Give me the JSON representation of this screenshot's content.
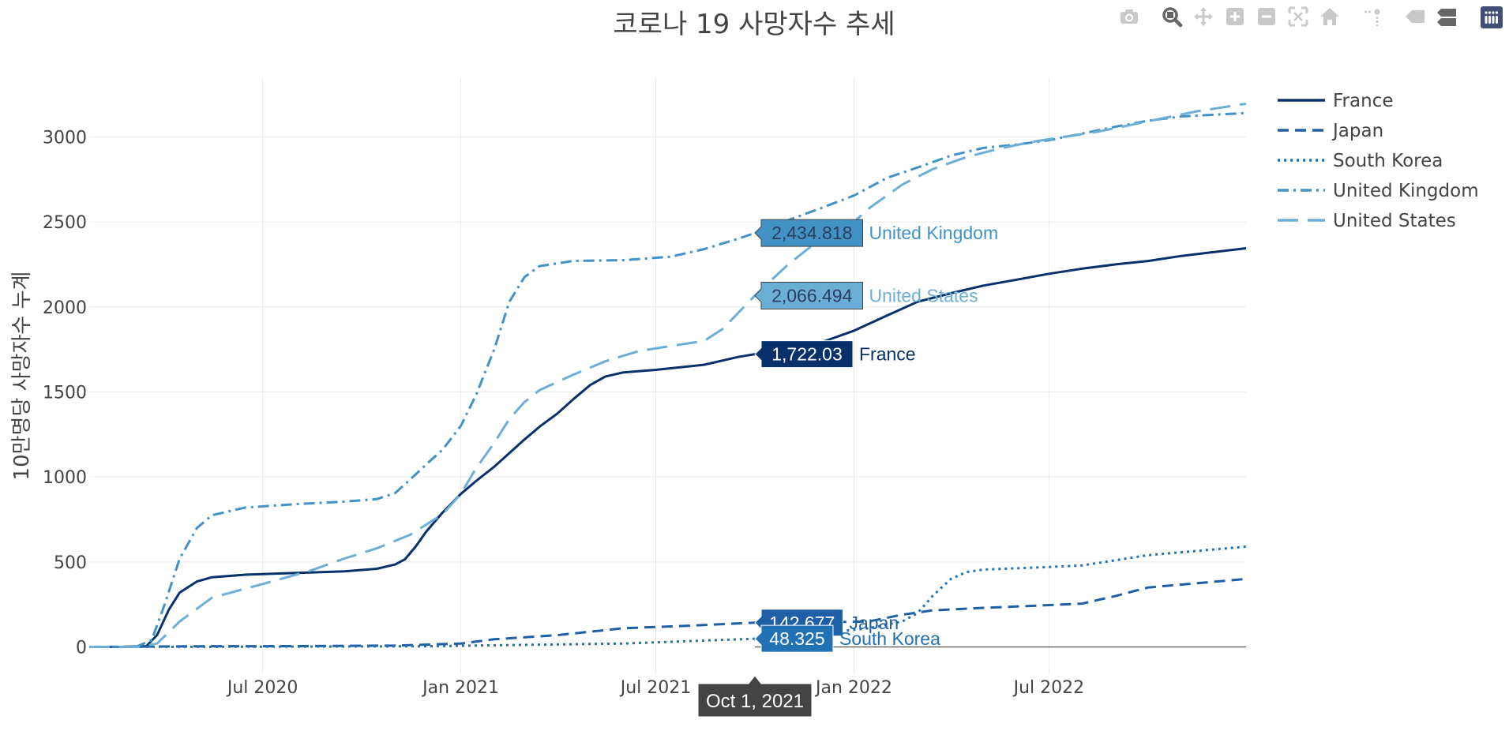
{
  "toolbar": {
    "buttons": [
      {
        "name": "camera-icon",
        "label": "Download plot as a png"
      },
      {
        "name": "zoom-icon",
        "label": "Zoom"
      },
      {
        "name": "pan-icon",
        "label": "Pan"
      },
      {
        "name": "zoom-in-icon",
        "label": "Zoom in"
      },
      {
        "name": "zoom-out-icon",
        "label": "Zoom out"
      },
      {
        "name": "autoscale-icon",
        "label": "Autoscale"
      },
      {
        "name": "home-icon",
        "label": "Reset axes"
      },
      {
        "name": "spike-icon",
        "label": "Toggle Spike Lines"
      },
      {
        "name": "hover-closest-icon",
        "label": "Show closest data on hover"
      },
      {
        "name": "hover-compare-icon",
        "label": "Compare data on hover"
      },
      {
        "name": "plotly-logo-icon",
        "label": "Produced with Plotly"
      }
    ],
    "active": "zoom-icon"
  },
  "chart_data": {
    "type": "line",
    "title": "코로나 19 사망자수 추세",
    "xlabel": "",
    "ylabel": "10만명당 사망자수 누계",
    "x_range": [
      "2020-01-22",
      "2022-12-31"
    ],
    "ylim": [
      -160,
      3350
    ],
    "x_ticks": [
      {
        "date": "2020-07-01",
        "label": "Jul 2020"
      },
      {
        "date": "2021-01-01",
        "label": "Jan 2021"
      },
      {
        "date": "2021-07-01",
        "label": "Jul 2021"
      },
      {
        "date": "2022-01-01",
        "label": "Jan 2022"
      },
      {
        "date": "2022-07-01",
        "label": "Jul 2022"
      }
    ],
    "y_ticks": [
      0,
      500,
      1000,
      1500,
      2000,
      2500,
      3000
    ],
    "grid": true,
    "legend_position": "top-right",
    "hover": {
      "date": "2021-10-01",
      "date_label": "Oct 1, 2021",
      "labels": [
        {
          "series": "United Kingdom",
          "value": 2434.818,
          "text": "2,434.818"
        },
        {
          "series": "United States",
          "value": 2066.494,
          "text": "2,066.494"
        },
        {
          "series": "France",
          "value": 1722.03,
          "text": "1,722.03"
        },
        {
          "series": "Japan",
          "value": 142.677,
          "text": "142.677"
        },
        {
          "series": "South Korea",
          "value": 48.325,
          "text": "48.325"
        }
      ]
    },
    "series": [
      {
        "name": "France",
        "color": "#08306b",
        "dash": "solid",
        "points": [
          [
            "2020-01-22",
            0
          ],
          [
            "2020-02-20",
            0
          ],
          [
            "2020-03-15",
            5
          ],
          [
            "2020-03-25",
            70
          ],
          [
            "2020-04-05",
            220
          ],
          [
            "2020-04-15",
            320
          ],
          [
            "2020-05-01",
            385
          ],
          [
            "2020-05-15",
            410
          ],
          [
            "2020-06-15",
            425
          ],
          [
            "2020-08-01",
            435
          ],
          [
            "2020-09-15",
            445
          ],
          [
            "2020-10-15",
            460
          ],
          [
            "2020-11-01",
            485
          ],
          [
            "2020-11-10",
            515
          ],
          [
            "2020-11-20",
            590
          ],
          [
            "2020-11-30",
            680
          ],
          [
            "2020-12-15",
            790
          ],
          [
            "2021-01-01",
            900
          ],
          [
            "2021-01-15",
            975
          ],
          [
            "2021-02-01",
            1060
          ],
          [
            "2021-02-15",
            1140
          ],
          [
            "2021-03-01",
            1220
          ],
          [
            "2021-03-15",
            1295
          ],
          [
            "2021-04-01",
            1375
          ],
          [
            "2021-04-15",
            1455
          ],
          [
            "2021-05-01",
            1540
          ],
          [
            "2021-05-15",
            1590
          ],
          [
            "2021-06-01",
            1615
          ],
          [
            "2021-07-01",
            1630
          ],
          [
            "2021-08-15",
            1660
          ],
          [
            "2021-09-15",
            1705
          ],
          [
            "2021-10-01",
            1722
          ],
          [
            "2021-11-01",
            1745
          ],
          [
            "2021-12-01",
            1790
          ],
          [
            "2022-01-01",
            1860
          ],
          [
            "2022-02-01",
            1950
          ],
          [
            "2022-03-01",
            2030
          ],
          [
            "2022-04-01",
            2080
          ],
          [
            "2022-05-01",
            2125
          ],
          [
            "2022-06-01",
            2160
          ],
          [
            "2022-07-01",
            2195
          ],
          [
            "2022-08-01",
            2225
          ],
          [
            "2022-09-01",
            2250
          ],
          [
            "2022-10-01",
            2270
          ],
          [
            "2022-11-01",
            2300
          ],
          [
            "2022-12-31",
            2345
          ]
        ]
      },
      {
        "name": "Japan",
        "color": "#1f5fa8",
        "dash": "dash",
        "points": [
          [
            "2020-01-22",
            0
          ],
          [
            "2020-05-01",
            4
          ],
          [
            "2020-08-01",
            5
          ],
          [
            "2020-11-01",
            8
          ],
          [
            "2021-01-01",
            20
          ],
          [
            "2021-02-01",
            45
          ],
          [
            "2021-04-01",
            70
          ],
          [
            "2021-06-01",
            110
          ],
          [
            "2021-08-01",
            125
          ],
          [
            "2021-10-01",
            142.7
          ],
          [
            "2021-12-01",
            145
          ],
          [
            "2022-01-15",
            150
          ],
          [
            "2022-02-15",
            190
          ],
          [
            "2022-03-15",
            215
          ],
          [
            "2022-05-01",
            230
          ],
          [
            "2022-06-01",
            238
          ],
          [
            "2022-08-01",
            255
          ],
          [
            "2022-09-01",
            300
          ],
          [
            "2022-10-01",
            350
          ],
          [
            "2022-12-31",
            400
          ]
        ]
      },
      {
        "name": "South Korea",
        "color": "#2171b5",
        "dash": "dot",
        "points": [
          [
            "2020-01-22",
            0
          ],
          [
            "2020-06-01",
            1
          ],
          [
            "2020-12-01",
            4
          ],
          [
            "2021-01-01",
            7
          ],
          [
            "2021-06-01",
            20
          ],
          [
            "2021-10-01",
            48.3
          ],
          [
            "2021-12-01",
            80
          ],
          [
            "2022-01-15",
            110
          ],
          [
            "2022-02-15",
            150
          ],
          [
            "2022-03-01",
            200
          ],
          [
            "2022-03-15",
            300
          ],
          [
            "2022-04-01",
            400
          ],
          [
            "2022-04-15",
            440
          ],
          [
            "2022-05-01",
            455
          ],
          [
            "2022-07-01",
            470
          ],
          [
            "2022-08-01",
            480
          ],
          [
            "2022-09-01",
            510
          ],
          [
            "2022-10-01",
            540
          ],
          [
            "2022-12-31",
            590
          ]
        ]
      },
      {
        "name": "United Kingdom",
        "color": "#4292c6",
        "dash": "dashdot",
        "points": [
          [
            "2020-01-22",
            0
          ],
          [
            "2020-03-05",
            0
          ],
          [
            "2020-03-20",
            40
          ],
          [
            "2020-04-01",
            250
          ],
          [
            "2020-04-15",
            520
          ],
          [
            "2020-05-01",
            700
          ],
          [
            "2020-05-15",
            775
          ],
          [
            "2020-06-15",
            820
          ],
          [
            "2020-08-01",
            840
          ],
          [
            "2020-09-15",
            855
          ],
          [
            "2020-10-15",
            870
          ],
          [
            "2020-11-01",
            905
          ],
          [
            "2020-11-15",
            985
          ],
          [
            "2020-12-01",
            1080
          ],
          [
            "2020-12-15",
            1160
          ],
          [
            "2021-01-01",
            1300
          ],
          [
            "2021-01-15",
            1480
          ],
          [
            "2021-02-01",
            1750
          ],
          [
            "2021-02-15",
            2030
          ],
          [
            "2021-03-01",
            2175
          ],
          [
            "2021-03-15",
            2240
          ],
          [
            "2021-04-15",
            2270
          ],
          [
            "2021-06-01",
            2275
          ],
          [
            "2021-07-15",
            2295
          ],
          [
            "2021-08-15",
            2340
          ],
          [
            "2021-09-15",
            2400
          ],
          [
            "2021-10-01",
            2434.8
          ],
          [
            "2021-11-01",
            2510
          ],
          [
            "2021-12-01",
            2580
          ],
          [
            "2022-01-01",
            2655
          ],
          [
            "2022-02-01",
            2760
          ],
          [
            "2022-03-01",
            2820
          ],
          [
            "2022-04-01",
            2890
          ],
          [
            "2022-05-01",
            2935
          ],
          [
            "2022-06-01",
            2955
          ],
          [
            "2022-07-01",
            2980
          ],
          [
            "2022-08-01",
            3020
          ],
          [
            "2022-09-01",
            3060
          ],
          [
            "2022-10-01",
            3095
          ],
          [
            "2022-11-01",
            3120
          ],
          [
            "2022-12-31",
            3140
          ]
        ]
      },
      {
        "name": "United States",
        "color": "#6baed6",
        "dash": "longdash",
        "points": [
          [
            "2020-01-22",
            0
          ],
          [
            "2020-03-10",
            0
          ],
          [
            "2020-03-25",
            20
          ],
          [
            "2020-04-15",
            150
          ],
          [
            "2020-05-15",
            290
          ],
          [
            "2020-07-01",
            370
          ],
          [
            "2020-08-15",
            450
          ],
          [
            "2020-09-15",
            520
          ],
          [
            "2020-10-15",
            580
          ],
          [
            "2020-11-15",
            660
          ],
          [
            "2020-12-15",
            780
          ],
          [
            "2021-01-01",
            900
          ],
          [
            "2021-01-15",
            1050
          ],
          [
            "2021-02-01",
            1200
          ],
          [
            "2021-02-15",
            1340
          ],
          [
            "2021-03-01",
            1440
          ],
          [
            "2021-03-15",
            1510
          ],
          [
            "2021-04-15",
            1600
          ],
          [
            "2021-05-15",
            1680
          ],
          [
            "2021-06-15",
            1740
          ],
          [
            "2021-07-15",
            1770
          ],
          [
            "2021-08-15",
            1800
          ],
          [
            "2021-09-01",
            1870
          ],
          [
            "2021-10-01",
            2066.5
          ],
          [
            "2021-11-01",
            2250
          ],
          [
            "2021-12-01",
            2400
          ],
          [
            "2022-01-01",
            2500
          ],
          [
            "2022-01-15",
            2580
          ],
          [
            "2022-02-15",
            2720
          ],
          [
            "2022-03-15",
            2810
          ],
          [
            "2022-04-15",
            2880
          ],
          [
            "2022-05-15",
            2930
          ],
          [
            "2022-06-15",
            2970
          ],
          [
            "2022-07-15",
            3000
          ],
          [
            "2022-08-15",
            3030
          ],
          [
            "2022-09-15",
            3070
          ],
          [
            "2022-10-15",
            3110
          ],
          [
            "2022-11-15",
            3150
          ],
          [
            "2022-12-31",
            3195
          ]
        ]
      }
    ]
  }
}
